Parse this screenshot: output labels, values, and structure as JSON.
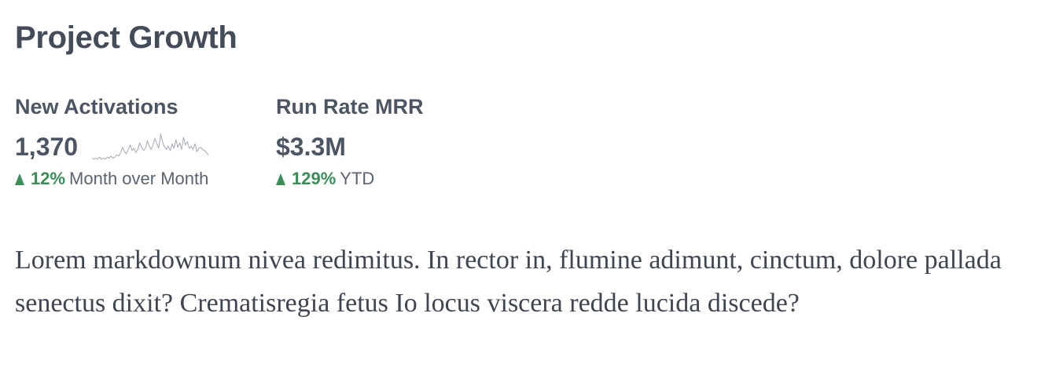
{
  "page": {
    "title": "Project Growth"
  },
  "metrics": [
    {
      "label": "New Activations",
      "value": "1,370",
      "change_pct": "12%",
      "change_label": "Month over Month",
      "trend": "up",
      "sparkline": [
        4,
        3,
        4,
        3,
        5,
        3,
        4,
        3,
        5,
        4,
        6,
        4,
        5,
        7,
        6,
        9,
        14,
        10,
        8,
        12,
        16,
        11,
        13,
        9,
        12,
        18,
        14,
        11,
        13,
        20,
        15,
        12,
        16,
        22,
        17,
        13,
        26,
        19,
        14,
        12,
        15,
        11,
        17,
        13,
        21,
        14,
        18,
        12,
        23,
        16,
        19,
        13,
        15,
        12,
        17,
        10,
        13,
        14,
        12,
        11,
        9,
        7
      ]
    },
    {
      "label": "Run Rate MRR",
      "value": "$3.3M",
      "change_pct": "129%",
      "change_label": "YTD",
      "trend": "up"
    }
  ],
  "body": {
    "text": "Lorem markdownum nivea redimitus. In rector in, flumine adimunt, cinctum, dolore pallada senectus dixit? Crematisregia fetus Io locus viscera redde lucida discede?"
  },
  "colors": {
    "positive": "#3b8c57",
    "sparkline": "#a2a8b1",
    "heading": "#444c5a"
  }
}
